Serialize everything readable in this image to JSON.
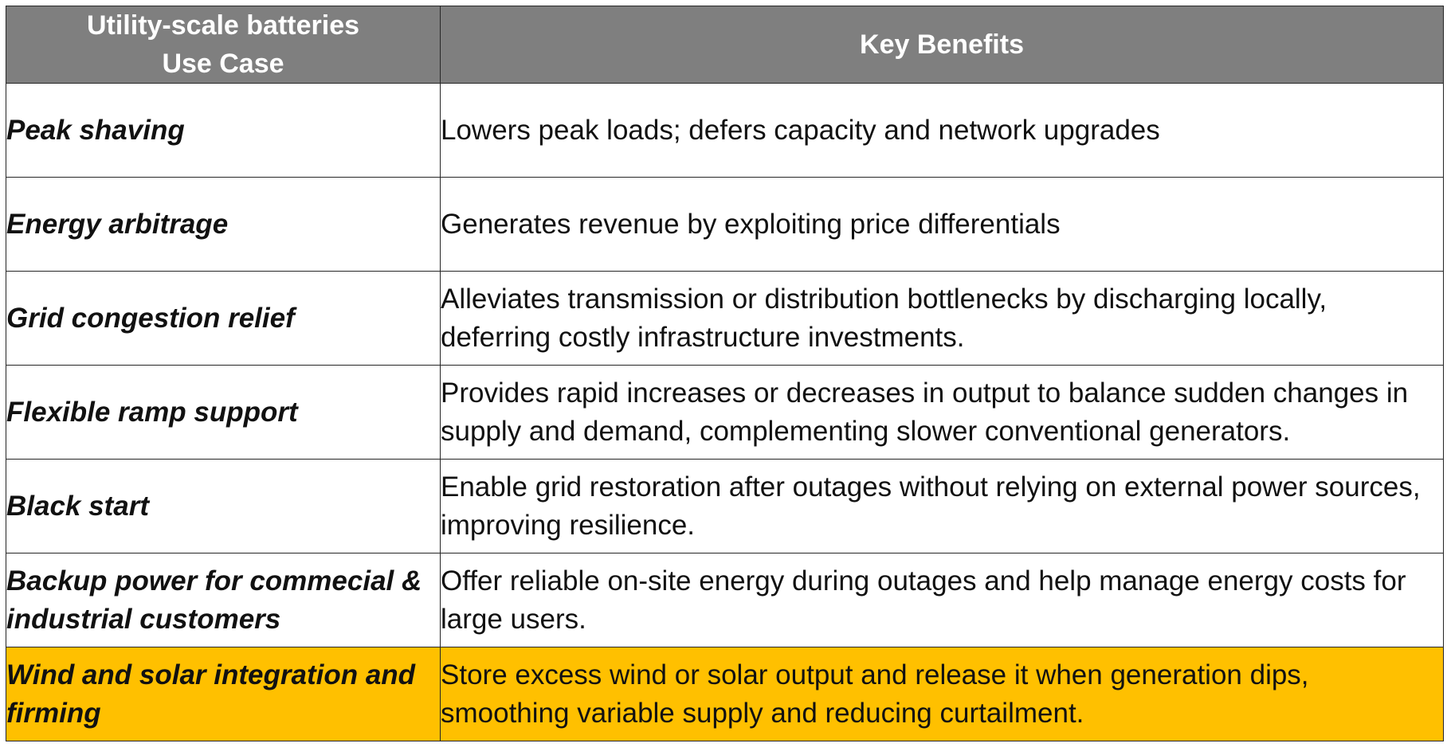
{
  "table": {
    "header": {
      "col1_line1": "Utility-scale batteries",
      "col1_line2": "Use Case",
      "col2": "Key Benefits"
    },
    "highlight_color": "#ffc000",
    "header_color": "#7f7f7f",
    "rows": [
      {
        "use_case": "Peak shaving",
        "benefit": "Lowers peak loads; defers capacity and network upgrades"
      },
      {
        "use_case": "Energy arbitrage",
        "benefit": "Generates revenue by exploiting price differentials"
      },
      {
        "use_case": "Grid congestion relief",
        "benefit": "Alleviates transmission or distribution bottlenecks by discharging locally, deferring costly infrastructure investments."
      },
      {
        "use_case": "Flexible ramp support",
        "benefit": "Provides rapid increases or decreases in output to balance sudden changes in supply and demand, complementing slower conventional generators."
      },
      {
        "use_case": "Black start",
        "benefit": "Enable grid restoration after outages without relying on external power sources, improving resilience."
      },
      {
        "use_case": "Backup power for commecial & industrial customers",
        "benefit": "Offer reliable on-site energy during outages and help manage energy costs for large users."
      },
      {
        "use_case": "Wind and solar integration and firming",
        "benefit": "Store excess wind or solar output and release it when generation dips, smoothing variable supply and reducing curtailment.",
        "highlighted": true
      }
    ]
  }
}
